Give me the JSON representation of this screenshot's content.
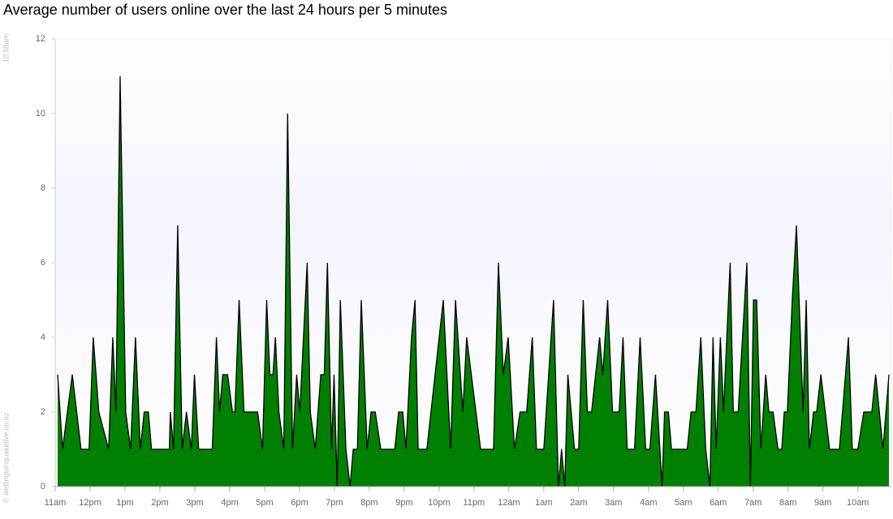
{
  "chart_data": {
    "type": "area",
    "title": "Average number of users online over the last 24 hours per 5 minutes",
    "timestamp": "10:59am",
    "credit": "© wellingtonquakelive.co.nz",
    "color": "#008000",
    "line_color": "#000000",
    "xlim": [
      0,
      23.96
    ],
    "xticks": [
      {
        "value": 0,
        "label": "11am"
      },
      {
        "value": 1,
        "label": "12pm"
      },
      {
        "value": 2,
        "label": "1pm"
      },
      {
        "value": 3,
        "label": "2pm"
      },
      {
        "value": 4,
        "label": "3pm"
      },
      {
        "value": 5,
        "label": "4pm"
      },
      {
        "value": 6,
        "label": "5pm"
      },
      {
        "value": 7,
        "label": "6pm"
      },
      {
        "value": 8,
        "label": "7pm"
      },
      {
        "value": 9,
        "label": "8pm"
      },
      {
        "value": 10,
        "label": "9pm"
      },
      {
        "value": 11,
        "label": "10pm"
      },
      {
        "value": 12,
        "label": "11pm"
      },
      {
        "value": 13,
        "label": "12am"
      },
      {
        "value": 14,
        "label": "1am"
      },
      {
        "value": 15,
        "label": "2am"
      },
      {
        "value": 16,
        "label": "3am"
      },
      {
        "value": 17,
        "label": "4am"
      },
      {
        "value": 18,
        "label": "5am"
      },
      {
        "value": 19,
        "label": "6am"
      },
      {
        "value": 20,
        "label": "7am"
      },
      {
        "value": 21,
        "label": "8am"
      },
      {
        "value": 22,
        "label": "9am"
      },
      {
        "value": 23,
        "label": "10am"
      }
    ],
    "ylim": [
      0,
      12
    ],
    "yticks": [
      0,
      2,
      4,
      6,
      8,
      10,
      12
    ],
    "x": [
      0.07,
      0.21,
      0.49,
      0.74,
      0.97,
      1.09,
      1.25,
      1.53,
      1.65,
      1.74,
      1.86,
      2.02,
      2.16,
      2.3,
      2.44,
      2.55,
      2.67,
      2.76,
      3.27,
      3.3,
      3.39,
      3.51,
      3.64,
      3.76,
      3.9,
      3.99,
      4.11,
      4.5,
      4.62,
      4.71,
      4.8,
      4.94,
      5.08,
      5.15,
      5.27,
      5.41,
      5.8,
      5.94,
      6.06,
      6.15,
      6.24,
      6.31,
      6.41,
      6.55,
      6.66,
      6.8,
      6.92,
      7.01,
      7.22,
      7.31,
      7.45,
      7.61,
      7.71,
      7.8,
      7.92,
      7.99,
      8.08,
      8.17,
      8.33,
      8.45,
      8.54,
      8.66,
      8.77,
      8.94,
      9.05,
      9.17,
      9.33,
      9.73,
      9.84,
      9.96,
      10.05,
      10.21,
      10.31,
      10.4,
      10.65,
      11.12,
      11.33,
      11.47,
      11.68,
      11.79,
      12.19,
      12.56,
      12.7,
      12.84,
      12.98,
      13.16,
      13.32,
      13.51,
      13.67,
      13.79,
      14.0,
      14.28,
      14.42,
      14.51,
      14.6,
      14.69,
      14.88,
      15.0,
      15.13,
      15.25,
      15.37,
      15.6,
      15.69,
      15.83,
      15.97,
      16.16,
      16.27,
      16.39,
      16.6,
      16.76,
      16.92,
      17.04,
      17.2,
      17.39,
      17.46,
      17.57,
      17.66,
      18.11,
      18.22,
      18.36,
      18.5,
      18.64,
      18.76,
      18.85,
      18.94,
      19.06,
      19.15,
      19.34,
      19.43,
      19.57,
      19.82,
      19.92,
      20.01,
      20.1,
      20.22,
      20.36,
      20.45,
      20.57,
      20.71,
      20.82,
      20.89,
      20.98,
      21.12,
      21.24,
      21.43,
      21.52,
      21.61,
      21.73,
      21.82,
      21.94,
      22.19,
      22.47,
      22.56,
      22.73,
      22.84,
      23.0,
      23.17,
      23.4,
      23.51,
      23.72,
      23.89
    ],
    "values": [
      3,
      1,
      3,
      1,
      1,
      4,
      2,
      1,
      4,
      2,
      11,
      2,
      1,
      4,
      1,
      2,
      2,
      1,
      1,
      2,
      1,
      7,
      1,
      2,
      1,
      3,
      1,
      1,
      4,
      2,
      3,
      3,
      2,
      2,
      5,
      2,
      2,
      1,
      5,
      3,
      3,
      4,
      2,
      1,
      10,
      1,
      3,
      2,
      6,
      2,
      1,
      3,
      3,
      6,
      1,
      3,
      0,
      5,
      1,
      0,
      1,
      1,
      5,
      1,
      2,
      2,
      1,
      1,
      2,
      2,
      1,
      4,
      5,
      1,
      1,
      5,
      1,
      5,
      2,
      4,
      1,
      1,
      6,
      3,
      4,
      1,
      2,
      2,
      4,
      1,
      1,
      5,
      0,
      1,
      0,
      3,
      1,
      1,
      5,
      2,
      2,
      4,
      3,
      5,
      2,
      2,
      4,
      1,
      1,
      4,
      1,
      1,
      3,
      0,
      2,
      2,
      1,
      1,
      2,
      2,
      4,
      1,
      0,
      4,
      1,
      4,
      2,
      6,
      2,
      2,
      6,
      0,
      5,
      5,
      1,
      3,
      2,
      2,
      1,
      1,
      2,
      2,
      5,
      7,
      2,
      5,
      1,
      2,
      2,
      3,
      1,
      1,
      2,
      4,
      1,
      1,
      2,
      2,
      3,
      1,
      3
    ]
  }
}
